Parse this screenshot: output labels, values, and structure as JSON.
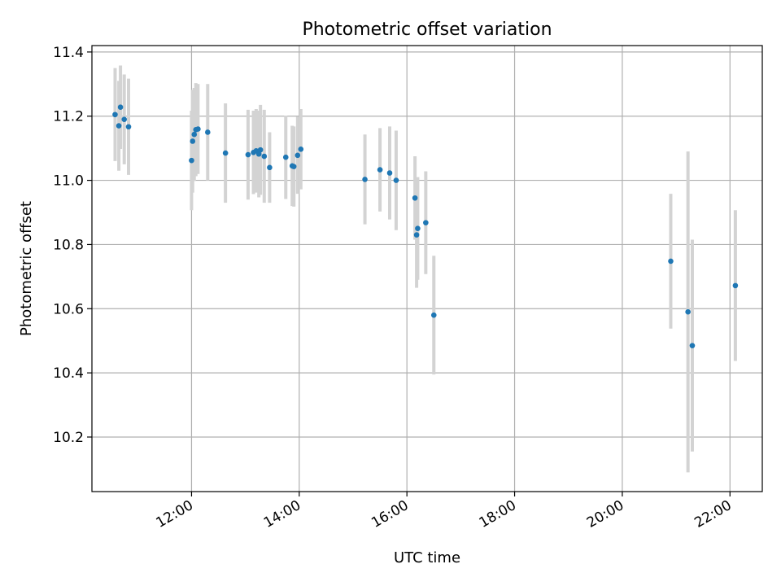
{
  "chart_data": {
    "type": "scatter",
    "title": "Photometric offset variation",
    "xlabel": "UTC time",
    "ylabel": "Photometric offset",
    "x_unit": "hours UTC",
    "xlim": [
      10.15,
      22.6
    ],
    "ylim": [
      10.03,
      11.42
    ],
    "x_ticks": [
      {
        "value": 12,
        "label": "12:00"
      },
      {
        "value": 14,
        "label": "14:00"
      },
      {
        "value": 16,
        "label": "16:00"
      },
      {
        "value": 18,
        "label": "18:00"
      },
      {
        "value": 20,
        "label": "20:00"
      },
      {
        "value": 22,
        "label": "22:00"
      }
    ],
    "y_ticks": [
      {
        "value": 10.2,
        "label": "10.2"
      },
      {
        "value": 10.4,
        "label": "10.4"
      },
      {
        "value": 10.6,
        "label": "10.6"
      },
      {
        "value": 10.8,
        "label": "10.8"
      },
      {
        "value": 11.0,
        "label": "11.0"
      },
      {
        "value": 11.2,
        "label": "11.2"
      },
      {
        "value": 11.4,
        "label": "11.4"
      }
    ],
    "grid": true,
    "legend": "none",
    "marker_color": "#1f77b4",
    "errorbar_color": "#d3d3d3",
    "points": [
      {
        "x": 10.58,
        "y": 11.205,
        "err": 0.145
      },
      {
        "x": 10.65,
        "y": 11.17,
        "err": 0.14
      },
      {
        "x": 10.68,
        "y": 11.228,
        "err": 0.13
      },
      {
        "x": 10.75,
        "y": 11.19,
        "err": 0.14
      },
      {
        "x": 10.83,
        "y": 11.167,
        "err": 0.15
      },
      {
        "x": 12.0,
        "y": 11.062,
        "err": 0.155
      },
      {
        "x": 12.02,
        "y": 11.122,
        "err": 0.16
      },
      {
        "x": 12.05,
        "y": 11.143,
        "err": 0.145
      },
      {
        "x": 12.08,
        "y": 11.158,
        "err": 0.145
      },
      {
        "x": 12.12,
        "y": 11.16,
        "err": 0.14
      },
      {
        "x": 12.3,
        "y": 11.15,
        "err": 0.15
      },
      {
        "x": 12.63,
        "y": 11.085,
        "err": 0.155
      },
      {
        "x": 13.05,
        "y": 11.08,
        "err": 0.14
      },
      {
        "x": 13.15,
        "y": 11.087,
        "err": 0.13
      },
      {
        "x": 13.2,
        "y": 11.092,
        "err": 0.13
      },
      {
        "x": 13.25,
        "y": 11.082,
        "err": 0.135
      },
      {
        "x": 13.28,
        "y": 11.095,
        "err": 0.14
      },
      {
        "x": 13.35,
        "y": 11.075,
        "err": 0.145
      },
      {
        "x": 13.45,
        "y": 11.04,
        "err": 0.11
      },
      {
        "x": 13.75,
        "y": 11.072,
        "err": 0.13
      },
      {
        "x": 13.87,
        "y": 11.045,
        "err": 0.125
      },
      {
        "x": 13.9,
        "y": 11.043,
        "err": 0.125
      },
      {
        "x": 13.97,
        "y": 11.078,
        "err": 0.12
      },
      {
        "x": 14.03,
        "y": 11.097,
        "err": 0.125
      },
      {
        "x": 15.22,
        "y": 11.003,
        "err": 0.14
      },
      {
        "x": 15.5,
        "y": 11.033,
        "err": 0.13
      },
      {
        "x": 15.68,
        "y": 11.023,
        "err": 0.145
      },
      {
        "x": 15.8,
        "y": 11.0,
        "err": 0.155
      },
      {
        "x": 16.15,
        "y": 10.945,
        "err": 0.13
      },
      {
        "x": 16.18,
        "y": 10.83,
        "err": 0.165
      },
      {
        "x": 16.2,
        "y": 10.85,
        "err": 0.16
      },
      {
        "x": 16.35,
        "y": 10.868,
        "err": 0.16
      },
      {
        "x": 16.5,
        "y": 10.58,
        "err": 0.185
      },
      {
        "x": 20.9,
        "y": 10.748,
        "err": 0.21
      },
      {
        "x": 21.22,
        "y": 10.59,
        "err": 0.5
      },
      {
        "x": 21.3,
        "y": 10.485,
        "err": 0.33
      },
      {
        "x": 22.1,
        "y": 10.672,
        "err": 0.235
      }
    ]
  }
}
